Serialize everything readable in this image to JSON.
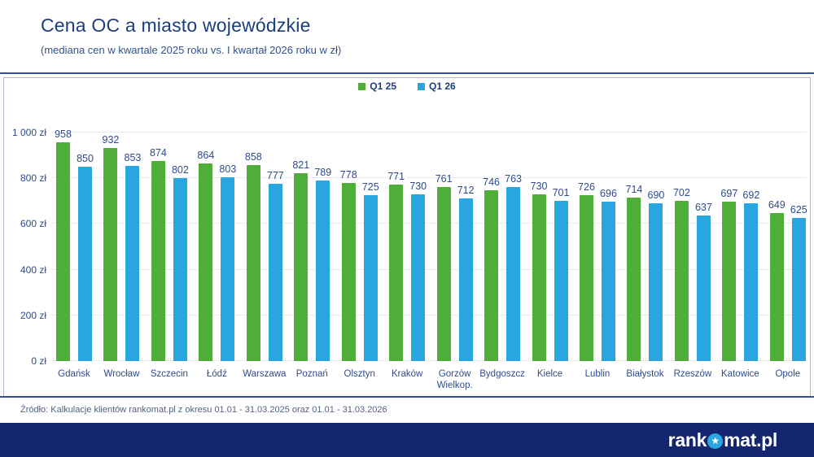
{
  "header": {
    "title": "Cena OC a miasto wojewódzkie",
    "subtitle": "(mediana cen w kwartale 2025 roku vs. I kwartał 2026 roku w zł)"
  },
  "legend": [
    {
      "label": "Q1 25",
      "color": "#4fae38"
    },
    {
      "label": "Q1 26",
      "color": "#29a5e0"
    }
  ],
  "chart_data": {
    "type": "bar",
    "title": "Cena OC a miasto wojewódzkie",
    "subtitle": "(mediana cen w kwartale 2025 roku vs. I kwartał 2026 roku w zł)",
    "categories": [
      "Gdańsk",
      "Wrocław",
      "Szczecin",
      "Łódź",
      "Warszawa",
      "Poznań",
      "Olsztyn",
      "Kraków",
      "Gorzów Wielkop.",
      "Bydgoszcz",
      "Kielce",
      "Lublin",
      "Białystok",
      "Rzeszów",
      "Katowice",
      "Opole"
    ],
    "series": [
      {
        "name": "Q1 25",
        "color": "#4fae38",
        "values": [
          958,
          932,
          874,
          864,
          858,
          821,
          778,
          771,
          761,
          746,
          730,
          726,
          714,
          702,
          697,
          649
        ]
      },
      {
        "name": "Q1 26",
        "color": "#29a5e0",
        "values": [
          850,
          853,
          802,
          803,
          777,
          789,
          725,
          730,
          712,
          763,
          701,
          696,
          690,
          637,
          692,
          625
        ]
      }
    ],
    "ylim": [
      0,
      1000
    ],
    "ytick_step": 200,
    "ytick_labels": [
      "0 zł",
      "200 zł",
      "400 zł",
      "600 zł",
      "800 zł",
      "1 000 zł"
    ],
    "xlabel": "",
    "ylabel": "",
    "grid": true,
    "legend_position": "top-center",
    "bar_value_labels": true
  },
  "footer": {
    "source": "Źródło: Kalkulacje klientów rankomat.pl z okresu 01.01 - 31.03.2025 oraz 01.01 - 31.03.2026",
    "logo_pre": "rank",
    "logo_post": "mat.pl",
    "logo_star_icon": "star-in-circle",
    "bar_color": "#13266f",
    "star_color": "#29a5e0"
  }
}
